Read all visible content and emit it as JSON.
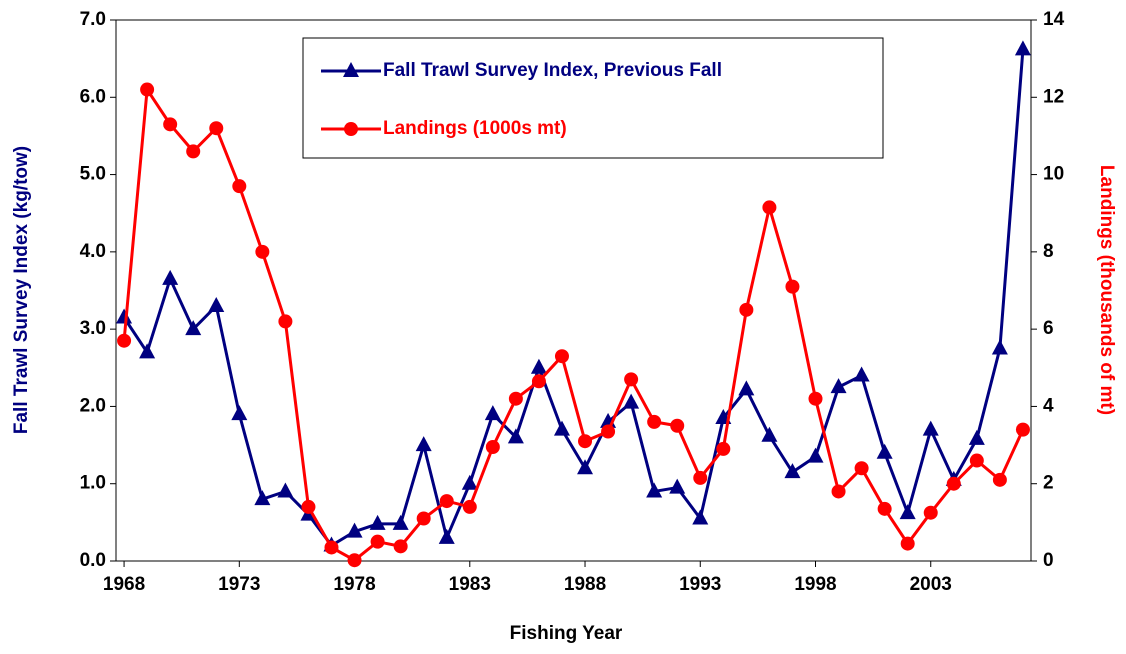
{
  "chart_data": {
    "type": "line",
    "x_label": "Fishing Year",
    "y_label": "Fall Trawl Survey Index (kg/tow)",
    "y2_label": "Landings (thousands of mt)",
    "x": [
      1968,
      1969,
      1970,
      1971,
      1972,
      1973,
      1974,
      1975,
      1976,
      1977,
      1978,
      1979,
      1980,
      1981,
      1982,
      1983,
      1984,
      1985,
      1986,
      1987,
      1988,
      1989,
      1990,
      1991,
      1992,
      1993,
      1994,
      1995,
      1996,
      1997,
      1998,
      1999,
      2000,
      2001,
      2002,
      2003,
      2004,
      2005,
      2006,
      2007
    ],
    "xlim": [
      1967.65,
      2007.35
    ],
    "xticks": [
      1968,
      1973,
      1978,
      1983,
      1988,
      1993,
      1998,
      2003
    ],
    "ylim": [
      0,
      7
    ],
    "yticks": [
      {
        "value": 0,
        "label": "0.0"
      },
      {
        "value": 1,
        "label": "1.0"
      },
      {
        "value": 2,
        "label": "2.0"
      },
      {
        "value": 3,
        "label": "3.0"
      },
      {
        "value": 4,
        "label": "4.0"
      },
      {
        "value": 5,
        "label": "5.0"
      },
      {
        "value": 6,
        "label": "6.0"
      },
      {
        "value": 7,
        "label": "7.0"
      }
    ],
    "y2lim": [
      0,
      14
    ],
    "y2ticks": [
      0,
      2,
      4,
      6,
      8,
      10,
      12,
      14
    ],
    "legend": "top",
    "series": [
      {
        "name": "Fall Trawl Survey Index, Previous Fall",
        "color": "#000080",
        "marker": "triangle",
        "values": [
          3.15,
          2.7,
          3.65,
          3.0,
          3.3,
          1.9,
          0.8,
          0.9,
          0.6,
          0.2,
          0.38,
          0.48,
          0.48,
          1.5,
          0.3,
          1.0,
          1.9,
          1.6,
          2.5,
          1.7,
          1.2,
          1.8,
          2.05,
          0.9,
          0.95,
          0.55,
          1.85,
          2.22,
          1.62,
          1.15,
          1.35,
          2.25,
          2.4,
          1.4,
          0.62,
          1.7,
          1.05,
          1.58,
          2.75,
          6.62
        ]
      },
      {
        "name": "Landings (1000s mt)",
        "color": "#ff0000",
        "marker": "circle",
        "axis": "y2",
        "values": [
          5.7,
          12.2,
          11.3,
          10.6,
          11.2,
          9.7,
          8.0,
          6.2,
          1.4,
          0.35,
          0.02,
          0.5,
          0.38,
          1.1,
          1.55,
          1.4,
          2.95,
          4.2,
          4.65,
          5.3,
          3.1,
          3.35,
          4.7,
          3.6,
          3.5,
          2.15,
          2.9,
          6.5,
          9.15,
          7.1,
          4.2,
          1.8,
          2.4,
          1.35,
          0.45,
          1.25,
          2.0,
          2.6,
          2.1,
          3.4
        ]
      }
    ]
  }
}
